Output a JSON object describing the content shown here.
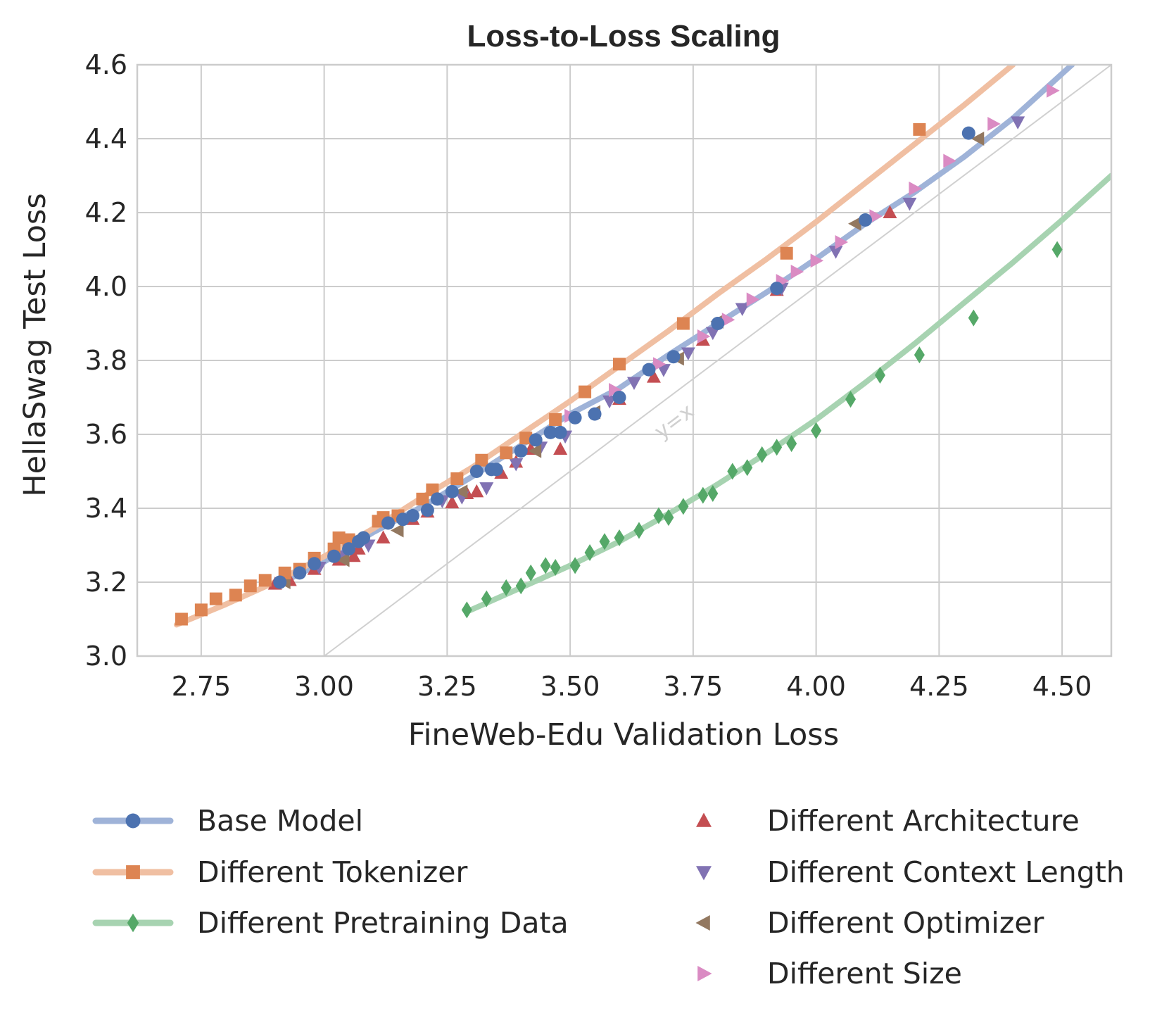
{
  "chart_data": {
    "type": "scatter",
    "title": "Loss-to-Loss Scaling",
    "xlabel": "FineWeb-Edu Validation Loss",
    "ylabel": "HellaSwag Test Loss",
    "xlim": [
      2.62,
      4.6
    ],
    "ylim": [
      3.0,
      4.6
    ],
    "xticks": [
      "2.75",
      "3.00",
      "3.25",
      "3.50",
      "3.75",
      "4.00",
      "4.25",
      "4.50"
    ],
    "yticks": [
      "3.0",
      "3.2",
      "3.4",
      "3.6",
      "3.8",
      "4.0",
      "4.2",
      "4.4",
      "4.6"
    ],
    "grid": true,
    "reference_line": {
      "label": "y=x",
      "slope": 1,
      "intercept": 0,
      "color": "#d0d0d0"
    },
    "legend_position": "bottom",
    "series": [
      {
        "name": "Base Model",
        "marker": "circle",
        "color": "#4c72b0",
        "line_color": "#9fb3d8",
        "fit": [
          [
            2.9,
            3.19
          ],
          [
            3.0,
            3.255
          ],
          [
            3.1,
            3.335
          ],
          [
            3.2,
            3.405
          ],
          [
            3.3,
            3.485
          ],
          [
            3.4,
            3.57
          ],
          [
            3.5,
            3.655
          ],
          [
            3.6,
            3.725
          ],
          [
            3.7,
            3.815
          ],
          [
            3.8,
            3.9
          ],
          [
            3.9,
            3.985
          ],
          [
            4.0,
            4.075
          ],
          [
            4.1,
            4.17
          ],
          [
            4.2,
            4.255
          ],
          [
            4.3,
            4.35
          ],
          [
            4.4,
            4.455
          ],
          [
            4.52,
            4.6
          ]
        ],
        "points": [
          [
            2.91,
            3.2
          ],
          [
            2.95,
            3.225
          ],
          [
            2.98,
            3.25
          ],
          [
            3.02,
            3.27
          ],
          [
            3.05,
            3.29
          ],
          [
            3.07,
            3.31
          ],
          [
            3.08,
            3.32
          ],
          [
            3.13,
            3.36
          ],
          [
            3.16,
            3.37
          ],
          [
            3.18,
            3.38
          ],
          [
            3.21,
            3.395
          ],
          [
            3.23,
            3.425
          ],
          [
            3.26,
            3.445
          ],
          [
            3.31,
            3.5
          ],
          [
            3.34,
            3.505
          ],
          [
            3.35,
            3.505
          ],
          [
            3.4,
            3.555
          ],
          [
            3.43,
            3.585
          ],
          [
            3.46,
            3.605
          ],
          [
            3.48,
            3.605
          ],
          [
            3.51,
            3.645
          ],
          [
            3.55,
            3.655
          ],
          [
            3.6,
            3.7
          ],
          [
            3.66,
            3.775
          ],
          [
            3.71,
            3.81
          ],
          [
            3.8,
            3.9
          ],
          [
            3.92,
            3.995
          ],
          [
            4.1,
            4.18
          ],
          [
            4.31,
            4.415
          ]
        ]
      },
      {
        "name": "Different Tokenizer",
        "marker": "square",
        "color": "#dd8452",
        "line_color": "#f0bfa2",
        "fit": [
          [
            2.7,
            3.085
          ],
          [
            2.8,
            3.14
          ],
          [
            2.9,
            3.2
          ],
          [
            3.0,
            3.27
          ],
          [
            3.1,
            3.345
          ],
          [
            3.2,
            3.43
          ],
          [
            3.3,
            3.51
          ],
          [
            3.4,
            3.6
          ],
          [
            3.5,
            3.69
          ],
          [
            3.6,
            3.785
          ],
          [
            3.7,
            3.88
          ],
          [
            3.8,
            3.98
          ],
          [
            3.9,
            4.075
          ],
          [
            4.0,
            4.175
          ],
          [
            4.1,
            4.28
          ],
          [
            4.2,
            4.385
          ],
          [
            4.3,
            4.49
          ],
          [
            4.4,
            4.6
          ]
        ],
        "points": [
          [
            2.71,
            3.1
          ],
          [
            2.75,
            3.125
          ],
          [
            2.78,
            3.155
          ],
          [
            2.82,
            3.165
          ],
          [
            2.85,
            3.19
          ],
          [
            2.88,
            3.205
          ],
          [
            2.92,
            3.225
          ],
          [
            2.95,
            3.235
          ],
          [
            2.98,
            3.265
          ],
          [
            3.02,
            3.29
          ],
          [
            3.03,
            3.32
          ],
          [
            3.05,
            3.315
          ],
          [
            3.11,
            3.365
          ],
          [
            3.12,
            3.375
          ],
          [
            3.15,
            3.38
          ],
          [
            3.2,
            3.425
          ],
          [
            3.22,
            3.45
          ],
          [
            3.27,
            3.48
          ],
          [
            3.32,
            3.53
          ],
          [
            3.37,
            3.55
          ],
          [
            3.41,
            3.59
          ],
          [
            3.47,
            3.64
          ],
          [
            3.53,
            3.715
          ],
          [
            3.6,
            3.79
          ],
          [
            3.73,
            3.9
          ],
          [
            3.94,
            4.09
          ],
          [
            4.21,
            4.425
          ]
        ]
      },
      {
        "name": "Different Pretraining Data",
        "marker": "diamond",
        "color": "#55a868",
        "line_color": "#a7d3b1",
        "fit": [
          [
            3.29,
            3.12
          ],
          [
            3.4,
            3.185
          ],
          [
            3.5,
            3.245
          ],
          [
            3.6,
            3.31
          ],
          [
            3.7,
            3.385
          ],
          [
            3.8,
            3.465
          ],
          [
            3.9,
            3.55
          ],
          [
            4.0,
            3.64
          ],
          [
            4.1,
            3.74
          ],
          [
            4.2,
            3.845
          ],
          [
            4.3,
            3.955
          ],
          [
            4.4,
            4.065
          ],
          [
            4.5,
            4.18
          ],
          [
            4.6,
            4.3
          ]
        ],
        "points": [
          [
            3.29,
            3.125
          ],
          [
            3.33,
            3.155
          ],
          [
            3.37,
            3.185
          ],
          [
            3.4,
            3.19
          ],
          [
            3.42,
            3.225
          ],
          [
            3.45,
            3.245
          ],
          [
            3.47,
            3.24
          ],
          [
            3.51,
            3.245
          ],
          [
            3.54,
            3.28
          ],
          [
            3.57,
            3.31
          ],
          [
            3.6,
            3.32
          ],
          [
            3.64,
            3.34
          ],
          [
            3.68,
            3.38
          ],
          [
            3.7,
            3.375
          ],
          [
            3.73,
            3.405
          ],
          [
            3.77,
            3.435
          ],
          [
            3.79,
            3.44
          ],
          [
            3.83,
            3.5
          ],
          [
            3.86,
            3.51
          ],
          [
            3.89,
            3.545
          ],
          [
            3.92,
            3.565
          ],
          [
            3.95,
            3.575
          ],
          [
            4.0,
            3.61
          ],
          [
            4.07,
            3.695
          ],
          [
            4.13,
            3.76
          ],
          [
            4.21,
            3.815
          ],
          [
            4.32,
            3.915
          ],
          [
            4.49,
            4.1
          ]
        ]
      },
      {
        "name": "Different Architecture",
        "marker": "triangle-up",
        "color": "#c44e52",
        "points": [
          [
            2.9,
            3.195
          ],
          [
            2.93,
            3.205
          ],
          [
            2.98,
            3.235
          ],
          [
            3.03,
            3.26
          ],
          [
            3.06,
            3.27
          ],
          [
            3.07,
            3.29
          ],
          [
            3.12,
            3.32
          ],
          [
            3.18,
            3.37
          ],
          [
            3.21,
            3.39
          ],
          [
            3.26,
            3.415
          ],
          [
            3.29,
            3.44
          ],
          [
            3.31,
            3.445
          ],
          [
            3.36,
            3.495
          ],
          [
            3.39,
            3.525
          ],
          [
            3.42,
            3.56
          ],
          [
            3.48,
            3.56
          ],
          [
            3.6,
            3.695
          ],
          [
            3.67,
            3.755
          ],
          [
            3.77,
            3.855
          ],
          [
            3.92,
            3.99
          ],
          [
            4.15,
            4.2
          ]
        ]
      },
      {
        "name": "Different Context Length",
        "marker": "triangle-down",
        "color": "#8172b3",
        "points": [
          [
            2.99,
            3.24
          ],
          [
            3.04,
            3.27
          ],
          [
            3.09,
            3.3
          ],
          [
            3.16,
            3.37
          ],
          [
            3.24,
            3.42
          ],
          [
            3.28,
            3.43
          ],
          [
            3.33,
            3.455
          ],
          [
            3.39,
            3.52
          ],
          [
            3.44,
            3.565
          ],
          [
            3.49,
            3.595
          ],
          [
            3.58,
            3.69
          ],
          [
            3.63,
            3.74
          ],
          [
            3.69,
            3.775
          ],
          [
            3.74,
            3.82
          ],
          [
            3.79,
            3.875
          ],
          [
            3.85,
            3.94
          ],
          [
            3.93,
            3.995
          ],
          [
            4.04,
            4.095
          ],
          [
            4.19,
            4.225
          ],
          [
            4.41,
            4.445
          ]
        ]
      },
      {
        "name": "Different Optimizer",
        "marker": "triangle-left",
        "color": "#937860",
        "points": [
          [
            2.92,
            3.2
          ],
          [
            3.04,
            3.26
          ],
          [
            3.15,
            3.34
          ],
          [
            3.28,
            3.445
          ],
          [
            3.43,
            3.555
          ],
          [
            3.55,
            3.66
          ],
          [
            3.72,
            3.805
          ],
          [
            3.8,
            3.905
          ],
          [
            4.08,
            4.17
          ],
          [
            4.33,
            4.4
          ]
        ]
      },
      {
        "name": "Different Size",
        "marker": "triangle-right",
        "color": "#da8bc3",
        "points": [
          [
            3.5,
            3.65
          ],
          [
            3.59,
            3.72
          ],
          [
            3.68,
            3.79
          ],
          [
            3.77,
            3.865
          ],
          [
            3.82,
            3.91
          ],
          [
            3.87,
            3.965
          ],
          [
            3.93,
            4.015
          ],
          [
            3.96,
            4.04
          ],
          [
            4.0,
            4.07
          ],
          [
            4.05,
            4.12
          ],
          [
            4.12,
            4.19
          ],
          [
            4.2,
            4.265
          ],
          [
            4.27,
            4.34
          ],
          [
            4.36,
            4.44
          ],
          [
            4.48,
            4.53
          ]
        ]
      }
    ]
  }
}
